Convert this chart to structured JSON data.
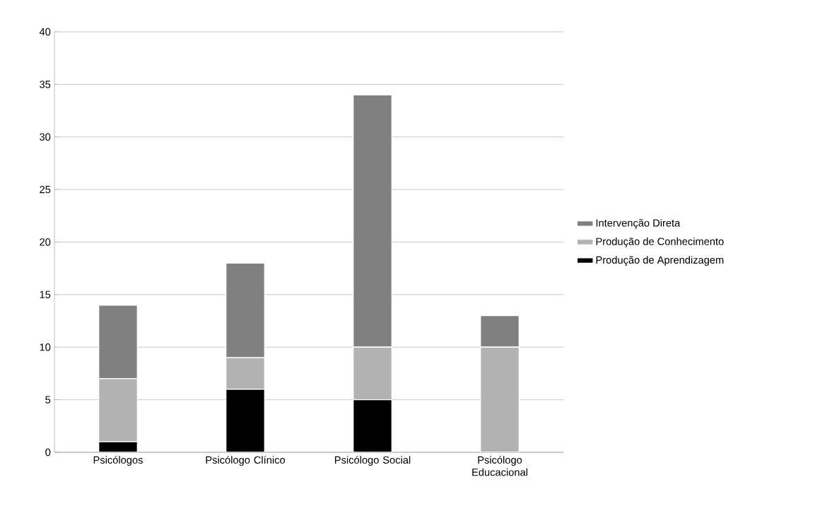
{
  "chart_data": {
    "type": "bar",
    "stacked": true,
    "categories": [
      "Psicólogos",
      "Psicólogo Clínico",
      "Psicólogo Social",
      "Psicólogo Educacional"
    ],
    "series": [
      {
        "name": "Produção de Aprendizagem",
        "color": "#000000",
        "values": [
          1,
          6,
          5,
          0
        ]
      },
      {
        "name": "Produção de Conhecimento",
        "color": "#b2b2b2",
        "values": [
          6,
          3,
          5,
          10
        ]
      },
      {
        "name": "Intervenção Direta",
        "color": "#808080",
        "values": [
          7,
          9,
          24,
          3
        ]
      }
    ],
    "ylim": [
      0,
      40
    ],
    "yticks": [
      0,
      5,
      10,
      15,
      20,
      25,
      30,
      35,
      40
    ],
    "grid": "y",
    "legend": "right"
  }
}
